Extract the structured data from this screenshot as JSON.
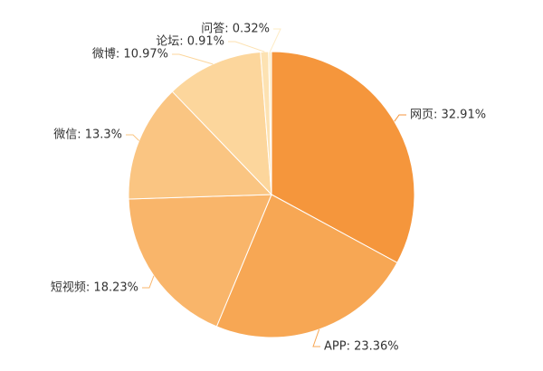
{
  "chart_data": {
    "type": "pie",
    "values": [
      32.91,
      23.36,
      18.23,
      13.3,
      10.97,
      0.91,
      0.32
    ],
    "value_labels": [
      "网页: 32.91%",
      "APP: 23.36%",
      "短视频: 18.23%",
      "微信: 13.3%",
      "微博: 10.97%",
      "论坛: 0.91%",
      "问答: 0.32%"
    ],
    "colors": [
      "#f5963c",
      "#f7a754",
      "#f9b56a",
      "#fac582",
      "#fcd69c",
      "#fde2b2",
      "#feecc6"
    ]
  }
}
